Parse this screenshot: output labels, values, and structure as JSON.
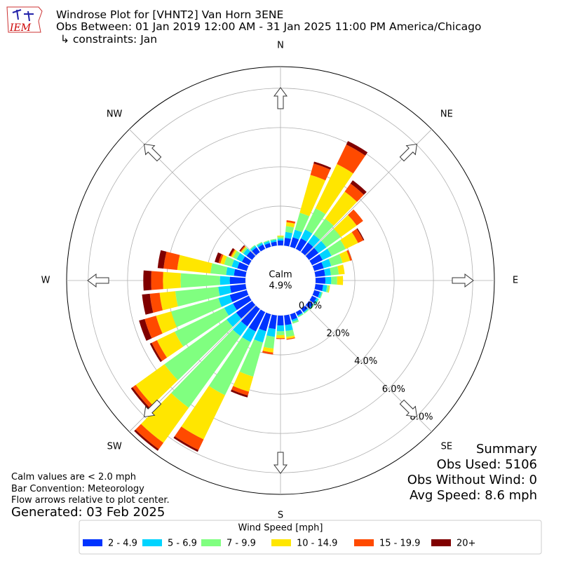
{
  "logo_text": "IEM",
  "chart_data": {
    "type": "windrose",
    "title": "Windrose Plot for [VHNT2] Van Horn 3ENE",
    "subtitle": "Obs Between: 01 Jan 2019 12:00 AM - 31 Jan 2025 11:00 PM America/Chicago",
    "constraints": "↳ constraints: Jan",
    "direction_labels": [
      {
        "value": 0,
        "label": "N"
      },
      {
        "value": 45,
        "label": "NE"
      },
      {
        "value": 90,
        "label": "E"
      },
      {
        "value": 135,
        "label": "SE"
      },
      {
        "value": 180,
        "label": "S"
      },
      {
        "value": 225,
        "label": "SW"
      },
      {
        "value": 270,
        "label": "W"
      },
      {
        "value": 315,
        "label": "NW"
      }
    ],
    "x": [
      0,
      10,
      20,
      30,
      40,
      50,
      60,
      70,
      80,
      90,
      100,
      110,
      120,
      130,
      140,
      150,
      160,
      170,
      180,
      190,
      200,
      210,
      220,
      230,
      240,
      250,
      260,
      270,
      280,
      290,
      300,
      310,
      320,
      330,
      340,
      350
    ],
    "rlim": [
      0,
      9.1
    ],
    "rticks": [
      {
        "value": 0,
        "label": "0.0%"
      },
      {
        "value": 2,
        "label": "2.0%"
      },
      {
        "value": 4,
        "label": "4.0%"
      },
      {
        "value": 6,
        "label": "6.0%"
      },
      {
        "value": 8,
        "label": "8.0%"
      }
    ],
    "calm_label": "Calm",
    "calm": {
      "value": 4.9,
      "label": "4.9%"
    },
    "legend_title": "Wind Speed [mph]",
    "series": [
      {
        "name": "2 - 4.9",
        "color": "#0033ff",
        "values": [
          0.25,
          0.4,
          0.5,
          0.6,
          0.6,
          0.6,
          0.6,
          0.5,
          0.5,
          0.5,
          0.4,
          0.3,
          0.25,
          0.25,
          0.2,
          0.2,
          0.3,
          0.5,
          0.5,
          0.7,
          0.9,
          1.1,
          1.1,
          1.0,
          0.9,
          0.9,
          0.8,
          0.8,
          0.6,
          0.5,
          0.4,
          0.35,
          0.3,
          0.25,
          0.2,
          0.2
        ]
      },
      {
        "name": "5 - 6.9",
        "color": "#00d4ff",
        "values": [
          0.1,
          0.3,
          0.4,
          0.5,
          0.5,
          0.5,
          0.5,
          0.4,
          0.3,
          0.3,
          0.2,
          0.1,
          0.1,
          0.05,
          0.05,
          0.05,
          0.1,
          0.3,
          0.3,
          0.4,
          0.6,
          0.6,
          0.6,
          0.6,
          0.5,
          0.6,
          0.6,
          0.5,
          0.4,
          0.3,
          0.3,
          0.2,
          0.1,
          0.1,
          0.1,
          0.1
        ]
      },
      {
        "name": "7 - 9.9",
        "color": "#80ff80",
        "values": [
          0.1,
          0.3,
          0.9,
          1.2,
          1.0,
          0.9,
          0.8,
          0.6,
          0.4,
          0.3,
          0.1,
          0.05,
          0.05,
          0.05,
          0.05,
          0.05,
          0.1,
          0.3,
          0.2,
          0.6,
          1.8,
          3.0,
          4.5,
          3.9,
          2.8,
          2.5,
          2.2,
          2.0,
          0.8,
          0.4,
          0.2,
          0.1,
          0.05,
          0.05,
          0.05,
          0.05
        ]
      },
      {
        "name": "10 - 14.9",
        "color": "#ffe600",
        "values": [
          0.05,
          0.2,
          2.0,
          2.5,
          1.7,
          1.0,
          0.7,
          0.4,
          0.3,
          0.3,
          0.05,
          0,
          0,
          0,
          0,
          0,
          0,
          0.1,
          0.15,
          0.2,
          0.8,
          2.5,
          2.2,
          1.8,
          1.0,
          0.8,
          0.8,
          0.9,
          1.7,
          0.2,
          0.1,
          0.05,
          0,
          0,
          0,
          0
        ]
      },
      {
        "name": "15 - 19.9",
        "color": "#ff4a00",
        "values": [
          0,
          0.1,
          0.6,
          1.1,
          0.5,
          0.4,
          0.3,
          0.1,
          0,
          0,
          0,
          0,
          0,
          0,
          0,
          0,
          0,
          0.05,
          0.05,
          0.1,
          0.2,
          0.6,
          0.4,
          0.2,
          0.3,
          0.6,
          0.5,
          0.6,
          0.7,
          0.1,
          0.05,
          0.05,
          0,
          0,
          0,
          0
        ]
      },
      {
        "name": "20+",
        "color": "#800000",
        "values": [
          0,
          0,
          0.1,
          0.2,
          0.2,
          0,
          0.05,
          0,
          0,
          0,
          0,
          0,
          0,
          0,
          0,
          0,
          0,
          0,
          0,
          0,
          0.1,
          0.1,
          0.1,
          0.1,
          0.1,
          0.3,
          0.4,
          0.4,
          0.3,
          0.2,
          0.1,
          0.05,
          0,
          0,
          0,
          0
        ]
      }
    ],
    "summary": [
      "Summary",
      "Obs Used: 5106",
      "Obs Without Wind: 0",
      "Avg Speed: 8.6 mph"
    ],
    "notes": [
      "Calm values are < 2.0 mph",
      "Bar Convention: Meteorology",
      "Flow arrows relative to plot center."
    ],
    "generated": "Generated: 03 Feb 2025"
  }
}
